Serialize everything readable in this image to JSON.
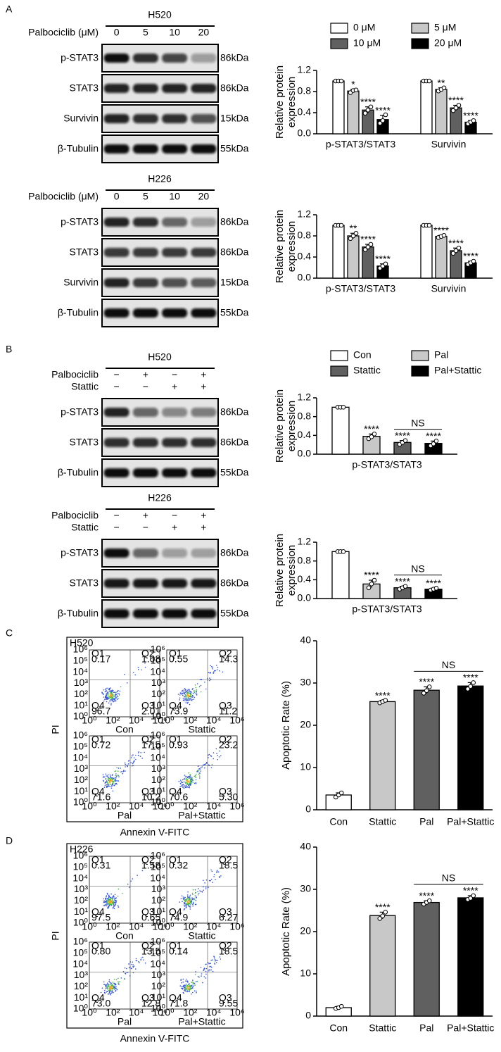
{
  "panels": [
    "A",
    "B",
    "C",
    "D"
  ],
  "blots": [
    {
      "title": "H520",
      "conditions": [
        {
          "label": "Palbociclib (μM)",
          "lanes": [
            "0",
            "5",
            "10",
            "20"
          ]
        }
      ],
      "rows": [
        {
          "protein": "p-STAT3",
          "size": "86kDa"
        },
        {
          "protein": "STAT3",
          "size": "86kDa"
        },
        {
          "protein": "Survivin",
          "size": "15kDa"
        },
        {
          "protein": "β-Tubulin",
          "size": "55kDa"
        }
      ]
    },
    {
      "title": "H226",
      "conditions": [
        {
          "label": "Palbociclib (μM)",
          "lanes": [
            "0",
            "5",
            "10",
            "20"
          ]
        }
      ],
      "rows": [
        {
          "protein": "p-STAT3",
          "size": "86kDa"
        },
        {
          "protein": "STAT3",
          "size": "86kDa"
        },
        {
          "protein": "Survivin",
          "size": "15kDa"
        },
        {
          "protein": "β-Tubulin",
          "size": "55kDa"
        }
      ]
    },
    {
      "title": "H520",
      "conditions": [
        {
          "label": "Palbociclib",
          "lanes": [
            "−",
            "+",
            "−",
            "+"
          ]
        },
        {
          "label": "Stattic",
          "lanes": [
            "−",
            "−",
            "+",
            "+"
          ]
        }
      ],
      "rows": [
        {
          "protein": "p-STAT3",
          "size": "86kDa"
        },
        {
          "protein": "STAT3",
          "size": "86kDa"
        },
        {
          "protein": "β-Tubulin",
          "size": "55kDa"
        }
      ]
    },
    {
      "title": "H226",
      "conditions": [
        {
          "label": "Palbociclib",
          "lanes": [
            "−",
            "+",
            "−",
            "+"
          ]
        },
        {
          "label": "Stattic",
          "lanes": [
            "−",
            "−",
            "+",
            "+"
          ]
        }
      ],
      "rows": [
        {
          "protein": "p-STAT3",
          "size": "86kDa"
        },
        {
          "protein": "STAT3",
          "size": "86kDa"
        },
        {
          "protein": "β-Tubulin",
          "size": "55kDa"
        }
      ]
    }
  ],
  "flow_axis": {
    "xlabel": "Annexin V-FITC",
    "ylabel": "PI",
    "xticks": [
      "10⁰",
      "10²",
      "10⁴",
      "10⁶"
    ],
    "yticks": [
      "10⁰",
      "10¹",
      "10²",
      "10³",
      "10⁴",
      "10⁵",
      "10⁶"
    ]
  },
  "flow": [
    {
      "cell_line": "H520",
      "plots": [
        {
          "name": "Con",
          "quadrants": [
            {
              "label": "Q1",
              "value": "0.17"
            },
            {
              "label": "Q2",
              "value": "1.08"
            },
            {
              "label": "Q3",
              "value": "2.01"
            },
            {
              "label": "Q4",
              "value": "96.7"
            }
          ]
        },
        {
          "name": "Stattic",
          "quadrants": [
            {
              "label": "Q1",
              "value": "0.55"
            },
            {
              "label": "Q2",
              "value": "14.3"
            },
            {
              "label": "Q3",
              "value": "11.2"
            },
            {
              "label": "Q4",
              "value": "73.9"
            }
          ]
        },
        {
          "name": "Pal",
          "quadrants": [
            {
              "label": "Q1",
              "value": "0.72"
            },
            {
              "label": "Q2",
              "value": "17.5"
            },
            {
              "label": "Q3",
              "value": "10.2"
            },
            {
              "label": "Q4",
              "value": "71.6"
            }
          ]
        },
        {
          "name": "Pal+Stattic",
          "quadrants": [
            {
              "label": "Q1",
              "value": "0.93"
            },
            {
              "label": "Q2",
              "value": "23.2"
            },
            {
              "label": "Q3",
              "value": "5.30"
            },
            {
              "label": "Q4",
              "value": "70.6"
            }
          ]
        }
      ]
    },
    {
      "cell_line": "H226",
      "plots": [
        {
          "name": "Con",
          "quadrants": [
            {
              "label": "Q1",
              "value": "0.31"
            },
            {
              "label": "Q2",
              "value": "1.58"
            },
            {
              "label": "Q3",
              "value": "0.65"
            },
            {
              "label": "Q4",
              "value": "97.5"
            }
          ]
        },
        {
          "name": "Stattic",
          "quadrants": [
            {
              "label": "Q1",
              "value": "0.32"
            },
            {
              "label": "Q2",
              "value": "18.5"
            },
            {
              "label": "Q3",
              "value": "6.27"
            },
            {
              "label": "Q4",
              "value": "74.9"
            }
          ]
        },
        {
          "name": "Pal",
          "quadrants": [
            {
              "label": "Q1",
              "value": "0.80"
            },
            {
              "label": "Q2",
              "value": "13.5"
            },
            {
              "label": "Q3",
              "value": "12.8"
            },
            {
              "label": "Q4",
              "value": "73.0"
            }
          ]
        },
        {
          "name": "Pal+Stattic",
          "quadrants": [
            {
              "label": "Q1",
              "value": "0.14"
            },
            {
              "label": "Q2",
              "value": "18.5"
            },
            {
              "label": "Q3",
              "value": "9.55"
            },
            {
              "label": "Q4",
              "value": "71.8"
            }
          ]
        }
      ]
    }
  ],
  "chart_data": [
    {
      "type": "bar",
      "ylabel": "Relative protein expression",
      "categories": [
        "p-STAT3/STAT3",
        "Survivin"
      ],
      "legend": "top",
      "ylim": [
        0,
        1.2
      ],
      "yticks": [
        {
          "value": 0,
          "label": "0.0"
        },
        0.4,
        0.8,
        1.2
      ],
      "series": [
        {
          "name": "0 μM",
          "color": "#ffffff",
          "values": [
            1,
            1
          ],
          "errors": [
            0,
            0
          ],
          "points": [
            [
              1,
              1,
              1
            ],
            [
              1,
              1,
              1
            ]
          ]
        },
        {
          "name": "5 μM",
          "color": "#c8c8c8",
          "values": [
            0.81,
            0.84
          ],
          "errors": [
            0.03,
            0.03
          ],
          "points": [
            [
              0.78,
              0.82,
              0.83
            ],
            [
              0.81,
              0.84,
              0.87
            ]
          ],
          "significance": [
            "*",
            "**"
          ]
        },
        {
          "name": "10 μM",
          "color": "#606060",
          "values": [
            0.45,
            0.49
          ],
          "errors": [
            0.06,
            0.05
          ],
          "points": [
            [
              0.39,
              0.45,
              0.51
            ],
            [
              0.44,
              0.49,
              0.54
            ]
          ],
          "significance": [
            "****",
            "****"
          ]
        },
        {
          "name": "20 μM",
          "color": "#000000",
          "values": [
            0.27,
            0.22
          ],
          "errors": [
            0.08,
            0.03
          ],
          "points": [
            [
              0.2,
              0.25,
              0.36
            ],
            [
              0.19,
              0.22,
              0.25
            ]
          ],
          "significance": [
            "****",
            "****"
          ]
        }
      ]
    },
    {
      "type": "bar",
      "ylabel": "Relative protein expression",
      "categories": [
        "p-STAT3/STAT3",
        "Survivin"
      ],
      "ylim": [
        0,
        1.2
      ],
      "yticks": [
        {
          "value": 0,
          "label": "0.0"
        },
        0.4,
        0.8,
        1.2
      ],
      "series": [
        {
          "color": "#ffffff",
          "values": [
            1,
            1
          ],
          "errors": [
            0,
            0
          ],
          "points": [
            [
              1,
              1,
              1
            ],
            [
              1,
              1,
              1
            ]
          ]
        },
        {
          "color": "#c8c8c8",
          "values": [
            0.8,
            0.79
          ],
          "errors": [
            0.05,
            0.02
          ],
          "points": [
            [
              0.75,
              0.8,
              0.85
            ],
            [
              0.77,
              0.79,
              0.81
            ]
          ],
          "significance": [
            "**",
            "****"
          ]
        },
        {
          "color": "#606060",
          "values": [
            0.59,
            0.52
          ],
          "errors": [
            0.05,
            0.05
          ],
          "points": [
            [
              0.54,
              0.59,
              0.64
            ],
            [
              0.47,
              0.52,
              0.57
            ]
          ],
          "significance": [
            "****",
            "****"
          ]
        },
        {
          "color": "#000000",
          "values": [
            0.23,
            0.29
          ],
          "errors": [
            0.04,
            0.03
          ],
          "points": [
            [
              0.19,
              0.23,
              0.27
            ],
            [
              0.26,
              0.29,
              0.32
            ]
          ],
          "significance": [
            "****",
            "****"
          ]
        }
      ]
    },
    {
      "type": "bar",
      "ylabel": "Relative protein expression",
      "categories": [
        "p-STAT3/STAT3"
      ],
      "legend": "top",
      "bracket_label": "NS",
      "ylim": [
        0,
        1.2
      ],
      "yticks": [
        {
          "value": 0,
          "label": "0.0"
        },
        0.4,
        0.8,
        1.2
      ],
      "series": [
        {
          "name": "Con",
          "color": "#ffffff",
          "values": [
            1
          ],
          "errors": [
            0
          ],
          "points": [
            [
              1,
              1,
              1
            ]
          ]
        },
        {
          "name": "Pal",
          "color": "#c8c8c8",
          "values": [
            0.38
          ],
          "errors": [
            0.05
          ],
          "points": [
            [
              0.33,
              0.37,
              0.43
            ]
          ],
          "significance": [
            "****"
          ]
        },
        {
          "name": "Stattic",
          "color": "#606060",
          "values": [
            0.25
          ],
          "errors": [
            0.04
          ],
          "points": [
            [
              0.21,
              0.25,
              0.29
            ]
          ],
          "significance": [
            "****"
          ]
        },
        {
          "name": "Pal+Stattic",
          "color": "#000000",
          "values": [
            0.23
          ],
          "errors": [
            0.05
          ],
          "points": [
            [
              0.18,
              0.22,
              0.28
            ]
          ],
          "significance": [
            "****"
          ]
        }
      ]
    },
    {
      "type": "bar",
      "ylabel": "Relative protein expression",
      "categories": [
        "p-STAT3/STAT3"
      ],
      "bracket_label": "NS",
      "ylim": [
        0,
        1.2
      ],
      "yticks": [
        {
          "value": 0,
          "label": "0.0"
        },
        0.4,
        0.8,
        1.2
      ],
      "series": [
        {
          "color": "#ffffff",
          "values": [
            1
          ],
          "errors": [
            0
          ],
          "points": [
            [
              1,
              1,
              1
            ]
          ]
        },
        {
          "color": "#c8c8c8",
          "values": [
            0.31
          ],
          "errors": [
            0.08
          ],
          "points": [
            [
              0.23,
              0.31,
              0.39
            ]
          ],
          "significance": [
            "****"
          ]
        },
        {
          "color": "#606060",
          "values": [
            0.23
          ],
          "errors": [
            0.03
          ],
          "points": [
            [
              0.2,
              0.23,
              0.26
            ]
          ],
          "significance": [
            "****"
          ]
        },
        {
          "color": "#000000",
          "values": [
            0.2
          ],
          "errors": [
            0.02
          ],
          "points": [
            [
              0.18,
              0.2,
              0.22
            ]
          ],
          "significance": [
            "****"
          ]
        }
      ]
    },
    {
      "type": "bar",
      "ylabel": "Apoptotic Rate (%)",
      "categories": [
        "Con",
        "Stattic",
        "Pal",
        "Pal+Stattic"
      ],
      "bracket_label": "NS",
      "ylim": [
        0,
        40
      ],
      "yticks": [
        0,
        10,
        20,
        30,
        40
      ],
      "colors": [
        "#ffffff",
        "#c8c8c8",
        "#606060",
        "#000000"
      ],
      "values": [
        3.5,
        25.6,
        28.3,
        29.3
      ],
      "errors": [
        0.5,
        0.3,
        0.8,
        0.8
      ],
      "points": [
        [
          3,
          3.5,
          4
        ],
        [
          25.3,
          25.6,
          25.9
        ],
        [
          27.6,
          28.2,
          29.1
        ],
        [
          28.6,
          29.2,
          30.1
        ]
      ],
      "significance": [
        null,
        "****",
        "****",
        "****"
      ]
    },
    {
      "type": "bar",
      "ylabel": "Apoptotic Rate (%)",
      "categories": [
        "Con",
        "Stattic",
        "Pal",
        "Pal+Stattic"
      ],
      "bracket_label": "NS",
      "ylim": [
        0,
        40
      ],
      "yticks": [
        0,
        10,
        20,
        30,
        40
      ],
      "colors": [
        "#ffffff",
        "#c8c8c8",
        "#606060",
        "#000000"
      ],
      "values": [
        2,
        23.8,
        26.9,
        28
      ],
      "errors": [
        0.3,
        0.8,
        0.4,
        0.5
      ],
      "points": [
        [
          1.8,
          2,
          2.3
        ],
        [
          23.1,
          23.7,
          24.6
        ],
        [
          26.5,
          26.9,
          27.3
        ],
        [
          27.6,
          27.9,
          28.5
        ]
      ],
      "significance": [
        null,
        "****",
        "****",
        "****"
      ]
    }
  ]
}
